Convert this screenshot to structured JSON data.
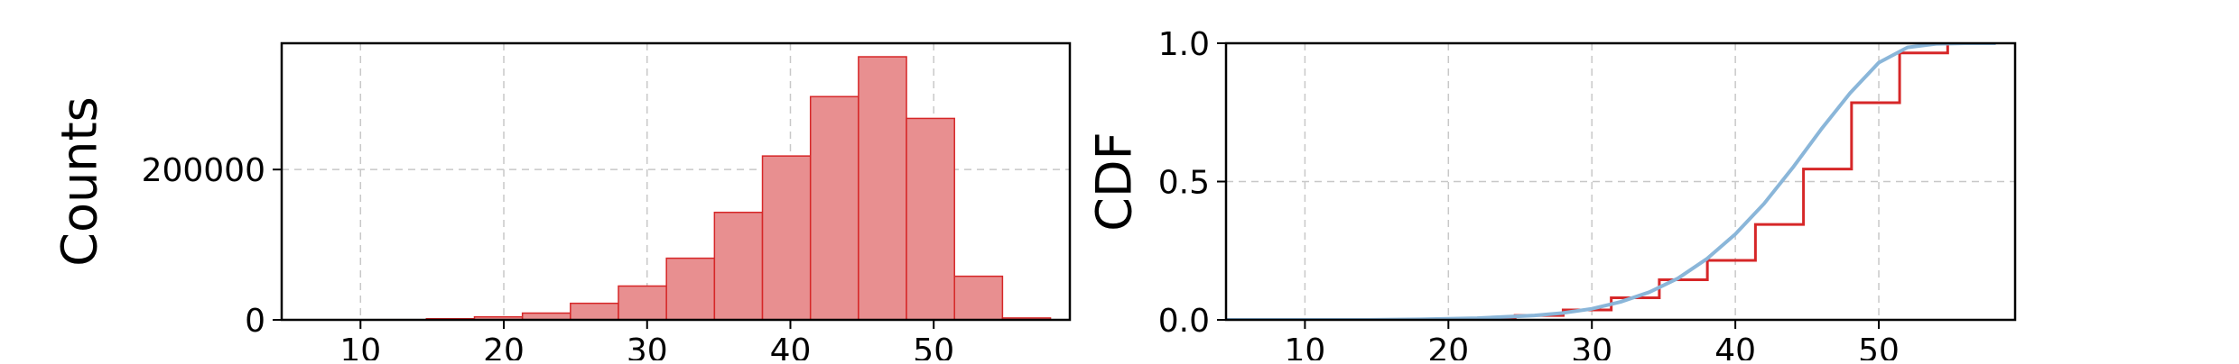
{
  "chart_data": [
    {
      "type": "bar",
      "ylabel": "Counts",
      "xlabel": "",
      "bin_edges": [
        7.9,
        11.25,
        14.6,
        17.95,
        21.3,
        24.65,
        28.0,
        31.35,
        34.7,
        38.05,
        41.4,
        44.75,
        48.1,
        51.45,
        54.8,
        58.15
      ],
      "values": [
        0,
        300,
        1500,
        4000,
        9000,
        22000,
        45000,
        82000,
        143000,
        218000,
        297000,
        350000,
        268000,
        58000,
        2500
      ],
      "xlim": [
        4.5,
        59.5
      ],
      "ylim": [
        0,
        368000
      ],
      "xticks": [
        "10",
        "20",
        "30",
        "40",
        "50"
      ],
      "xtick_values": [
        10,
        20,
        30,
        40,
        50
      ],
      "yticks": [
        "0",
        "200000"
      ],
      "ytick_values": [
        0,
        200000
      ],
      "grid": true,
      "color": "#e88f90",
      "edge_color": "#d62728"
    },
    {
      "type": "line",
      "ylabel": "CDF",
      "xlabel": "",
      "xlim": [
        4.5,
        59.5
      ],
      "ylim": [
        0,
        1
      ],
      "xticks": [
        "10",
        "20",
        "30",
        "40",
        "50"
      ],
      "xtick_values": [
        10,
        20,
        30,
        40,
        50
      ],
      "yticks": [
        "0.0",
        "0.5",
        "1.0"
      ],
      "ytick_values": [
        0,
        0.5,
        1.0
      ],
      "grid": true,
      "series": [
        {
          "kind": "step",
          "color": "#d62728",
          "x": [
            17.95,
            21.3,
            24.65,
            28.0,
            31.35,
            34.7,
            38.05,
            41.4,
            44.75,
            48.1,
            51.45,
            54.8,
            58.15
          ],
          "y": [
            0.002,
            0.006,
            0.016,
            0.036,
            0.08,
            0.145,
            0.215,
            0.345,
            0.545,
            0.785,
            0.965,
            1.0,
            1.0
          ]
        },
        {
          "kind": "smooth",
          "color": "#8ab6d9",
          "x": [
            4.5,
            14,
            18,
            22,
            26,
            28,
            30,
            32,
            34,
            36,
            38,
            40,
            42,
            44,
            46,
            48,
            50,
            52,
            54,
            56,
            58.15
          ],
          "y": [
            0,
            0,
            0.002,
            0.006,
            0.016,
            0.025,
            0.04,
            0.065,
            0.1,
            0.15,
            0.22,
            0.31,
            0.42,
            0.55,
            0.69,
            0.82,
            0.93,
            0.985,
            0.998,
            1.0,
            1.0
          ]
        }
      ]
    }
  ]
}
